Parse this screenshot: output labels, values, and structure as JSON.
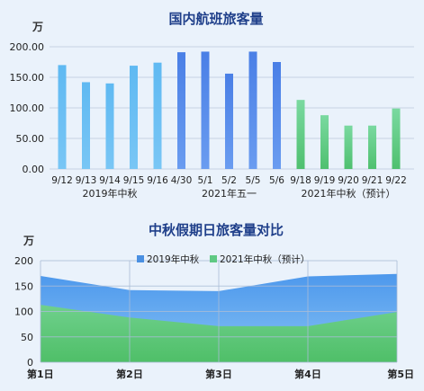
{
  "chart_data": [
    {
      "type": "bar",
      "title": "国内航班旅客量",
      "ylabel": "万",
      "ylim": [
        0,
        200
      ],
      "yticks": [
        "0.00",
        "50.00",
        "100.00",
        "150.00",
        "200.00"
      ],
      "categories": [
        "9/12",
        "9/13",
        "9/14",
        "9/15",
        "9/16",
        "4/30",
        "5/1",
        "5/2",
        "5/5",
        "5/6",
        "9/18",
        "9/19",
        "9/20",
        "9/21",
        "9/22"
      ],
      "values": [
        170,
        142,
        140,
        169,
        174,
        191,
        192,
        156,
        192,
        175,
        113,
        88,
        71,
        71,
        99
      ],
      "groups": [
        {
          "label": "2019年中秋",
          "start": 0,
          "count": 5,
          "color": "#59b3ee"
        },
        {
          "label": "2021年五一",
          "start": 5,
          "count": 5,
          "color": "#4f86e8"
        },
        {
          "label": "2021年中秋（预计）",
          "start": 10,
          "count": 5,
          "color": "#6fd08c"
        }
      ]
    },
    {
      "type": "area",
      "title": "中秋假期日旅客量对比",
      "ylabel": "万",
      "ylim": [
        0,
        200
      ],
      "yticks": [
        "0",
        "50",
        "100",
        "150",
        "200"
      ],
      "grid": true,
      "legend": "top",
      "categories": [
        "第1日",
        "第2日",
        "第3日",
        "第4日",
        "第5日"
      ],
      "series": [
        {
          "name": "2019年中秋",
          "values": [
            170,
            142,
            140,
            169,
            174
          ],
          "color": "#5aa4ee"
        },
        {
          "name": "2021年中秋（预计）",
          "values": [
            113,
            88,
            71,
            71,
            99
          ],
          "color": "#6fd08c"
        }
      ]
    }
  ]
}
